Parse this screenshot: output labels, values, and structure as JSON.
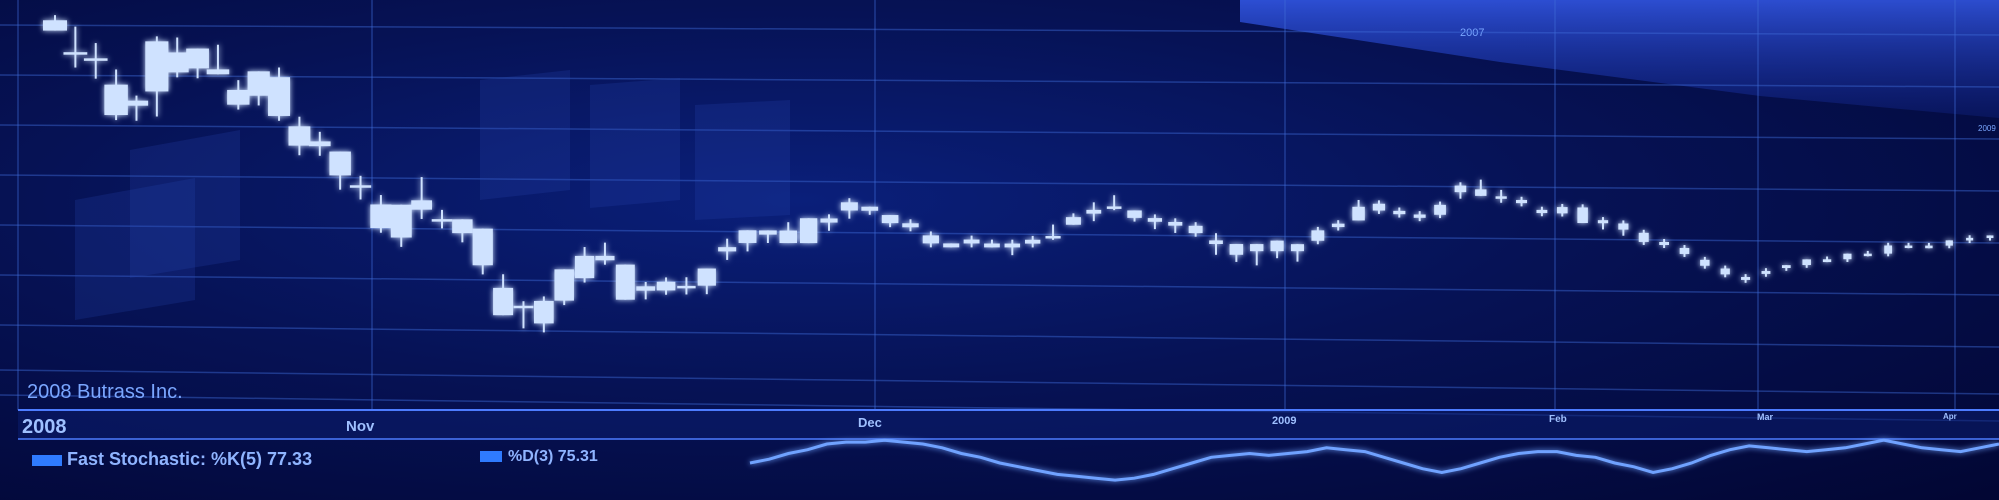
{
  "header": {
    "year_label_top": "2007",
    "year_label_right": "2009",
    "company": "2008 Butrass Inc."
  },
  "timeline": {
    "left_year": "2008",
    "months": [
      "Nov",
      "Dec",
      "2009",
      "Feb",
      "Mar",
      "Apr"
    ]
  },
  "indicator": {
    "fast_label": "Fast Stochastic: %K(5) 77.33",
    "slow_label": "%D(3) 75.31"
  },
  "colors": {
    "candle": "#cfe2ff",
    "glow": "#3d7dff",
    "grid": "#3f6ad8",
    "line": "#6fa2ff"
  },
  "chart_data": {
    "type": "candlestick",
    "title": "",
    "xlabel": "",
    "ylabel": "",
    "candles": [
      {
        "o": 98,
        "h": 99,
        "l": 96,
        "c": 96
      },
      {
        "o": 92,
        "h": 97,
        "l": 89,
        "c": 92
      },
      {
        "o": 91,
        "h": 94,
        "l": 87,
        "c": 91
      },
      {
        "o": 86,
        "h": 89,
        "l": 79,
        "c": 80
      },
      {
        "o": 83,
        "h": 84,
        "l": 79,
        "c": 82
      },
      {
        "o": 85,
        "h": 96,
        "l": 80,
        "c": 95
      },
      {
        "o": 93,
        "h": 96,
        "l": 88,
        "c": 89
      },
      {
        "o": 90,
        "h": 94,
        "l": 88,
        "c": 94
      },
      {
        "o": 90,
        "h": 95,
        "l": 89,
        "c": 89
      },
      {
        "o": 86,
        "h": 88,
        "l": 82,
        "c": 83
      },
      {
        "o": 85,
        "h": 90,
        "l": 83,
        "c": 90
      },
      {
        "o": 89,
        "h": 91,
        "l": 80,
        "c": 81
      },
      {
        "o": 79,
        "h": 81,
        "l": 73,
        "c": 75
      },
      {
        "o": 75,
        "h": 78,
        "l": 73,
        "c": 76
      },
      {
        "o": 74,
        "h": 74,
        "l": 66,
        "c": 69
      },
      {
        "o": 67,
        "h": 69,
        "l": 64,
        "c": 67
      },
      {
        "o": 63,
        "h": 65,
        "l": 57,
        "c": 58
      },
      {
        "o": 56,
        "h": 63,
        "l": 54,
        "c": 63
      },
      {
        "o": 62,
        "h": 69,
        "l": 60,
        "c": 64
      },
      {
        "o": 60,
        "h": 62,
        "l": 58,
        "c": 60
      },
      {
        "o": 60,
        "h": 60,
        "l": 55,
        "c": 57
      },
      {
        "o": 58,
        "h": 58,
        "l": 48,
        "c": 50
      },
      {
        "o": 45,
        "h": 48,
        "l": 39,
        "c": 39
      },
      {
        "o": 41,
        "h": 42,
        "l": 36,
        "c": 41
      },
      {
        "o": 37,
        "h": 43,
        "l": 35,
        "c": 42
      },
      {
        "o": 42,
        "h": 49,
        "l": 41,
        "c": 49
      },
      {
        "o": 47,
        "h": 54,
        "l": 46,
        "c": 52
      },
      {
        "o": 52,
        "h": 55,
        "l": 50,
        "c": 51
      },
      {
        "o": 50,
        "h": 50,
        "l": 42,
        "c": 42
      },
      {
        "o": 45,
        "h": 46,
        "l": 42,
        "c": 44
      },
      {
        "o": 44,
        "h": 47,
        "l": 43,
        "c": 46
      },
      {
        "o": 45,
        "h": 47,
        "l": 43,
        "c": 45
      },
      {
        "o": 45,
        "h": 49,
        "l": 43,
        "c": 49
      },
      {
        "o": 54,
        "h": 56,
        "l": 51,
        "c": 53
      },
      {
        "o": 55,
        "h": 58,
        "l": 53,
        "c": 58
      },
      {
        "o": 58,
        "h": 58,
        "l": 55,
        "c": 57
      },
      {
        "o": 58,
        "h": 60,
        "l": 55,
        "c": 55
      },
      {
        "o": 55,
        "h": 61,
        "l": 55,
        "c": 61
      },
      {
        "o": 60,
        "h": 62,
        "l": 58,
        "c": 61
      },
      {
        "o": 63,
        "h": 66,
        "l": 61,
        "c": 65
      },
      {
        "o": 64,
        "h": 64,
        "l": 62,
        "c": 63
      },
      {
        "o": 62,
        "h": 62,
        "l": 59,
        "c": 60
      },
      {
        "o": 60,
        "h": 61,
        "l": 58,
        "c": 59
      },
      {
        "o": 57,
        "h": 58,
        "l": 54,
        "c": 55
      },
      {
        "o": 55,
        "h": 55,
        "l": 54,
        "c": 54
      },
      {
        "o": 55,
        "h": 57,
        "l": 54,
        "c": 56
      },
      {
        "o": 55,
        "h": 56,
        "l": 54,
        "c": 54
      },
      {
        "o": 55,
        "h": 56,
        "l": 52,
        "c": 54
      },
      {
        "o": 55,
        "h": 57,
        "l": 54,
        "c": 56
      },
      {
        "o": 57,
        "h": 60,
        "l": 56,
        "c": 57
      },
      {
        "o": 60,
        "h": 63,
        "l": 60,
        "c": 62
      },
      {
        "o": 63,
        "h": 66,
        "l": 61,
        "c": 64
      },
      {
        "o": 65,
        "h": 68,
        "l": 64,
        "c": 65
      },
      {
        "o": 64,
        "h": 64,
        "l": 61,
        "c": 62
      },
      {
        "o": 62,
        "h": 63,
        "l": 59,
        "c": 61
      },
      {
        "o": 61,
        "h": 62,
        "l": 58,
        "c": 60
      },
      {
        "o": 60,
        "h": 61,
        "l": 57,
        "c": 58
      },
      {
        "o": 56,
        "h": 58,
        "l": 52,
        "c": 55
      },
      {
        "o": 55,
        "h": 55,
        "l": 50,
        "c": 52
      },
      {
        "o": 53,
        "h": 55,
        "l": 49,
        "c": 55
      },
      {
        "o": 56,
        "h": 56,
        "l": 51,
        "c": 53
      },
      {
        "o": 53,
        "h": 55,
        "l": 50,
        "c": 55
      },
      {
        "o": 56,
        "h": 60,
        "l": 55,
        "c": 59
      },
      {
        "o": 60,
        "h": 62,
        "l": 59,
        "c": 61
      },
      {
        "o": 62,
        "h": 68,
        "l": 62,
        "c": 66
      },
      {
        "o": 67,
        "h": 68,
        "l": 64,
        "c": 65
      },
      {
        "o": 65,
        "h": 66,
        "l": 63,
        "c": 64
      },
      {
        "o": 63,
        "h": 65,
        "l": 62,
        "c": 64
      },
      {
        "o": 64,
        "h": 68,
        "l": 63,
        "c": 67
      },
      {
        "o": 71,
        "h": 74,
        "l": 69,
        "c": 73
      },
      {
        "o": 72,
        "h": 75,
        "l": 70,
        "c": 70
      },
      {
        "o": 70,
        "h": 72,
        "l": 68,
        "c": 70
      },
      {
        "o": 69,
        "h": 70,
        "l": 67,
        "c": 68
      },
      {
        "o": 66,
        "h": 67,
        "l": 64,
        "c": 65
      },
      {
        "o": 65,
        "h": 68,
        "l": 64,
        "c": 67
      },
      {
        "o": 67,
        "h": 68,
        "l": 62,
        "c": 62
      },
      {
        "o": 62,
        "h": 64,
        "l": 60,
        "c": 63
      },
      {
        "o": 62,
        "h": 63,
        "l": 58,
        "c": 60
      },
      {
        "o": 59,
        "h": 60,
        "l": 55,
        "c": 56
      },
      {
        "o": 56,
        "h": 57,
        "l": 54,
        "c": 55
      },
      {
        "o": 54,
        "h": 55,
        "l": 51,
        "c": 52
      },
      {
        "o": 50,
        "h": 51,
        "l": 47,
        "c": 48
      },
      {
        "o": 47,
        "h": 48,
        "l": 44,
        "c": 45
      },
      {
        "o": 44,
        "h": 45,
        "l": 42,
        "c": 43
      },
      {
        "o": 45,
        "h": 47,
        "l": 44,
        "c": 46
      },
      {
        "o": 47,
        "h": 48,
        "l": 46,
        "c": 48
      },
      {
        "o": 48,
        "h": 50,
        "l": 47,
        "c": 50
      },
      {
        "o": 50,
        "h": 51,
        "l": 49,
        "c": 49
      },
      {
        "o": 50,
        "h": 52,
        "l": 49,
        "c": 52
      },
      {
        "o": 52,
        "h": 53,
        "l": 51,
        "c": 52
      },
      {
        "o": 52,
        "h": 56,
        "l": 51,
        "c": 55
      },
      {
        "o": 55,
        "h": 56,
        "l": 54,
        "c": 55
      },
      {
        "o": 55,
        "h": 56,
        "l": 54,
        "c": 54
      },
      {
        "o": 55,
        "h": 57,
        "l": 54,
        "c": 57
      },
      {
        "o": 57,
        "h": 59,
        "l": 56,
        "c": 58
      },
      {
        "o": 58,
        "h": 59,
        "l": 57,
        "c": 59
      }
    ],
    "oscillator": [
      30,
      32,
      35,
      37,
      40,
      41,
      41,
      42,
      41,
      40,
      38,
      35,
      33,
      30,
      28,
      26,
      24,
      23,
      22,
      21,
      22,
      24,
      27,
      30,
      33,
      34,
      35,
      34,
      35,
      36,
      38,
      37,
      36,
      33,
      30,
      27,
      25,
      27,
      30,
      33,
      35,
      36,
      36,
      34,
      33,
      30,
      28,
      25,
      27,
      30,
      34,
      37,
      39,
      38,
      37,
      36,
      37,
      38,
      40,
      42,
      40,
      38,
      37,
      36,
      38,
      40
    ]
  }
}
